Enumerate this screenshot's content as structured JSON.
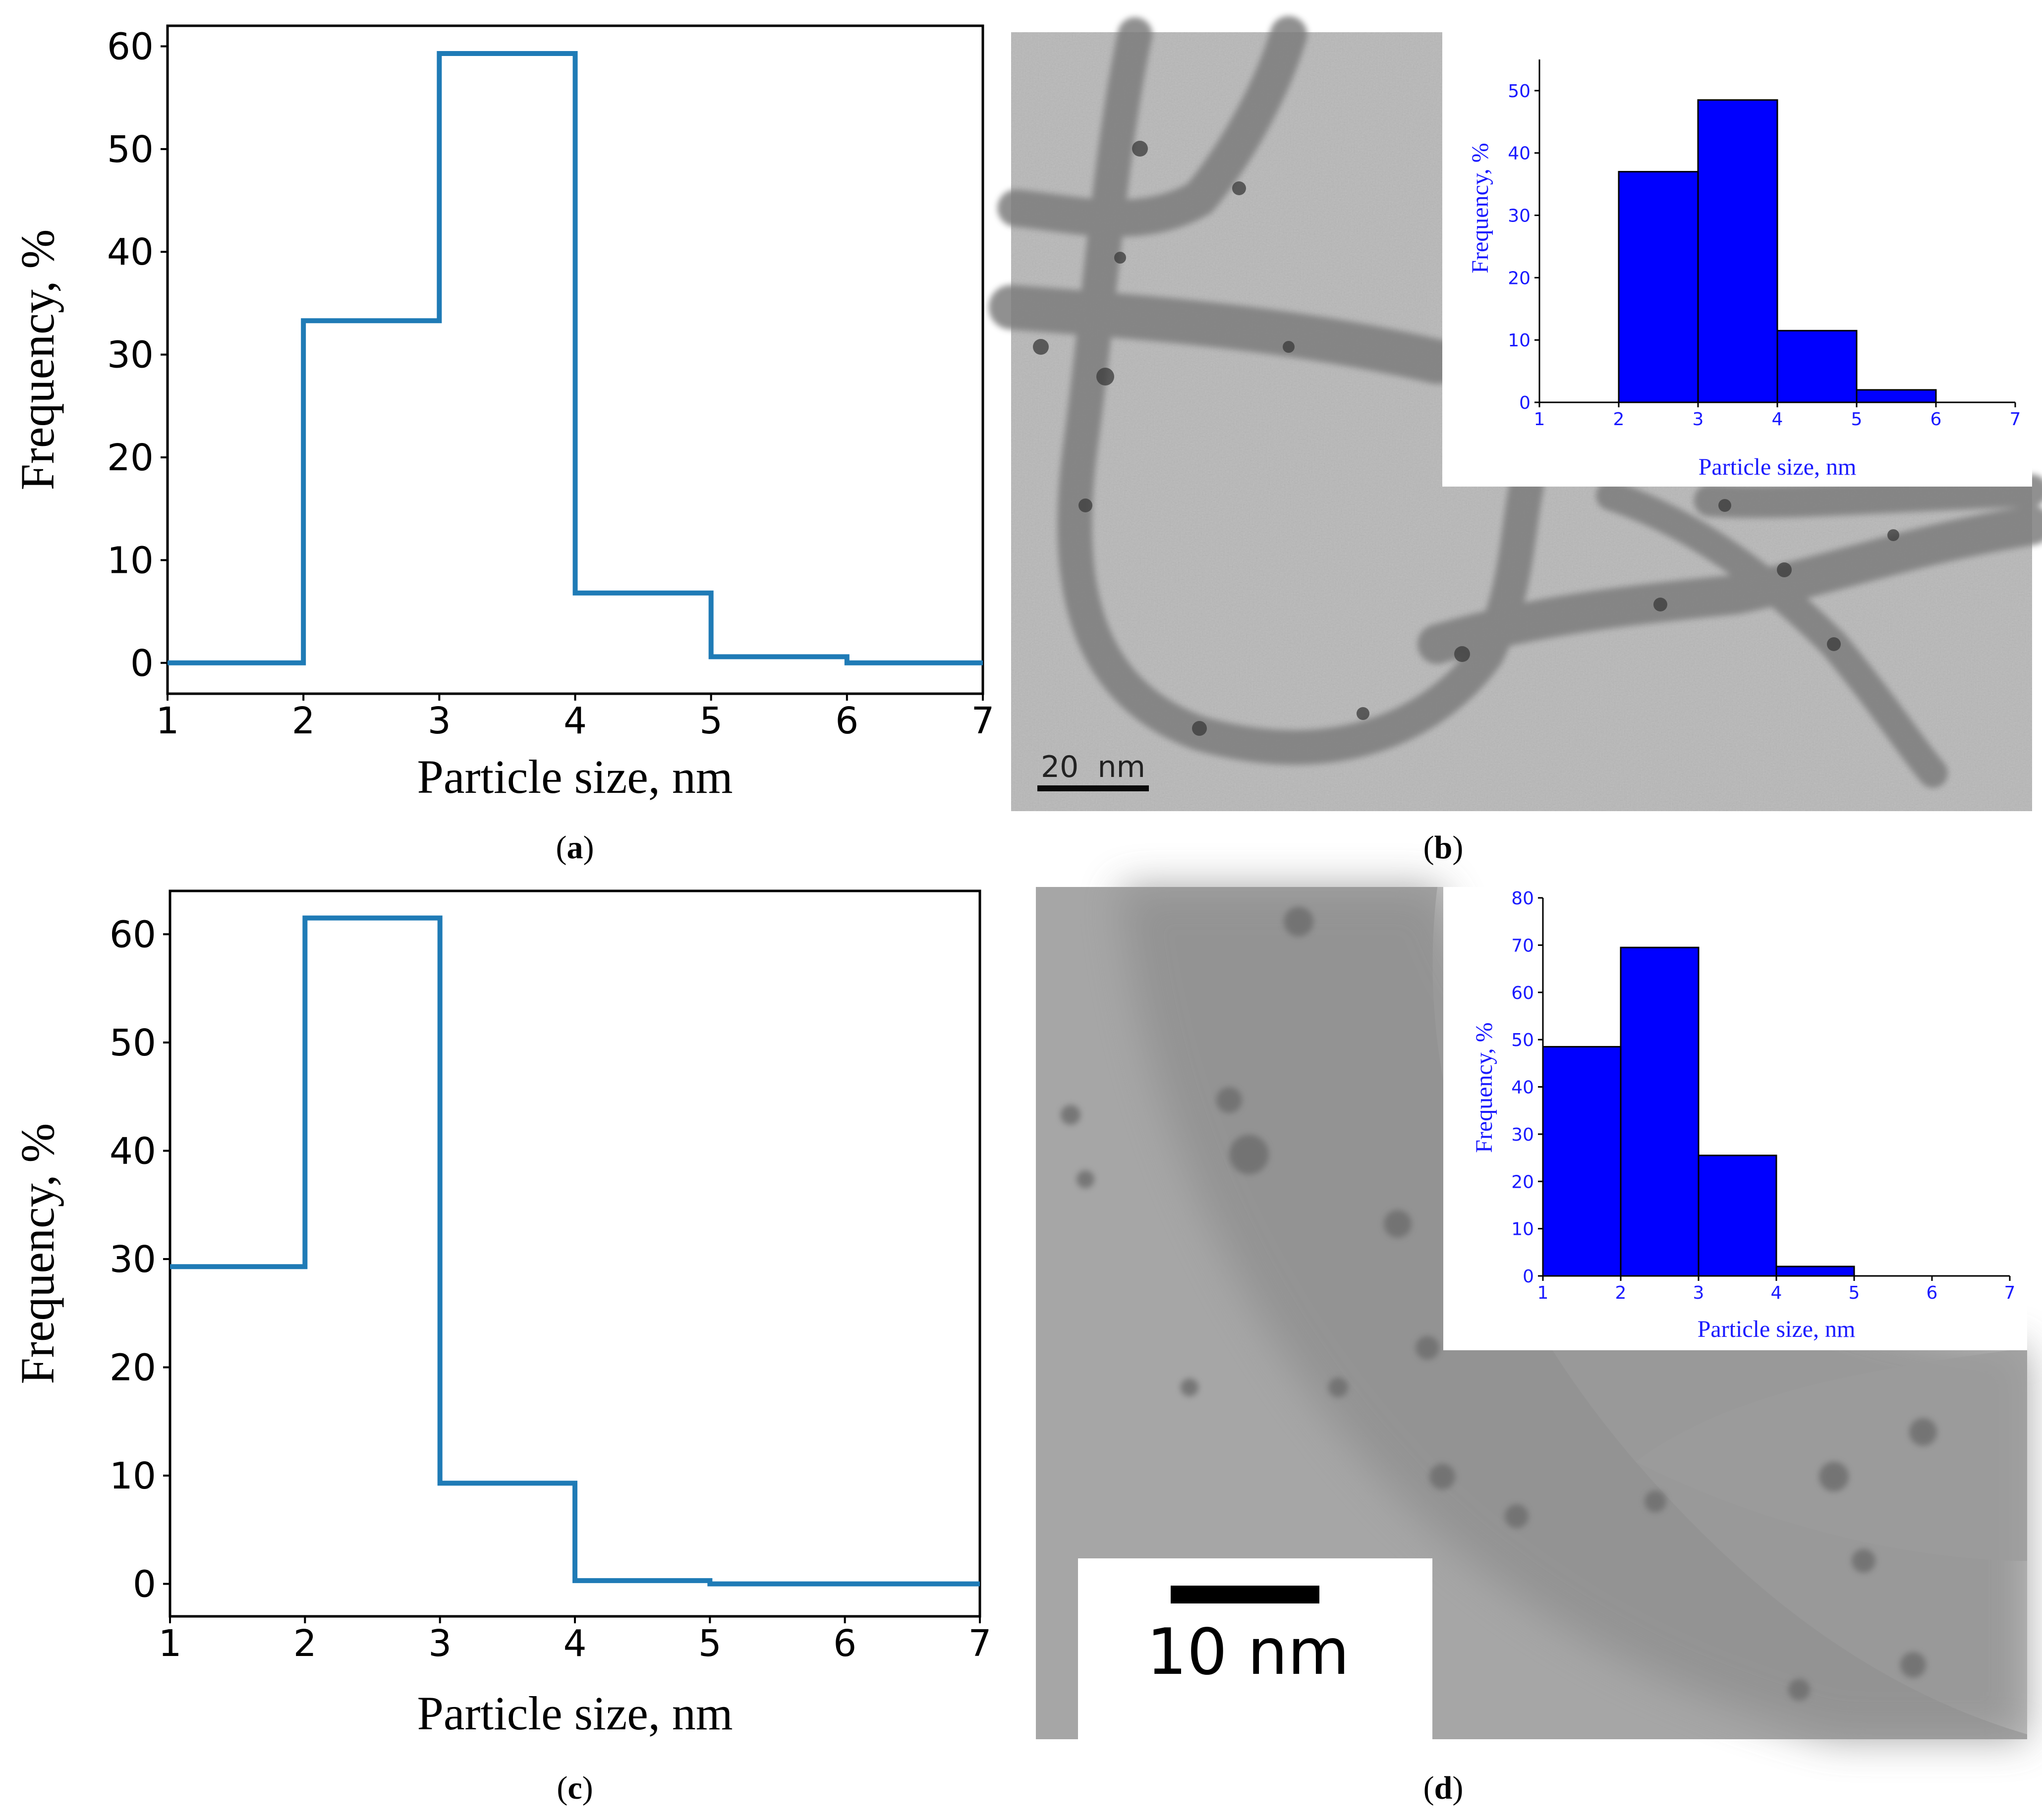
{
  "figure": {
    "panel_labels": [
      {
        "open": "(",
        "letter": "a",
        "close": ")"
      },
      {
        "open": "(",
        "letter": "b",
        "close": ")"
      },
      {
        "open": "(",
        "letter": "c",
        "close": ")"
      },
      {
        "open": "(",
        "letter": "d",
        "close": ")"
      }
    ],
    "micrograph_b": {
      "scale_bar": "20  nm"
    },
    "micrograph_d": {
      "scale_bar": "10 nm"
    }
  },
  "colors": {
    "step_line": "#1f7bb6",
    "inset_bar": "#0000ff",
    "inset_text": "#1a1aff",
    "tem_background": "#b9b9b9"
  },
  "chart_data": [
    {
      "id": "a",
      "type": "line",
      "style": "step",
      "title": "",
      "xlabel": "Particle size, nm",
      "ylabel": "Frequency, %",
      "xlim": [
        1,
        7
      ],
      "ylim": [
        -3,
        62
      ],
      "xticks": [
        "1",
        "2",
        "3",
        "4",
        "5",
        "6",
        "7"
      ],
      "yticks": [
        "0",
        "10",
        "20",
        "30",
        "40",
        "50",
        "60"
      ],
      "series": [
        {
          "name": "frequency",
          "bin_edges": [
            1,
            2,
            3,
            4,
            5,
            6,
            7
          ],
          "values": [
            0,
            33.3,
            59.3,
            6.8,
            0.6,
            0
          ]
        }
      ]
    },
    {
      "id": "b-inset",
      "type": "bar",
      "title": "",
      "xlabel": "Particle size, nm",
      "ylabel": "Frequency, %",
      "xlim": [
        1,
        7
      ],
      "ylim": [
        0,
        55
      ],
      "xticks": [
        "1",
        "2",
        "3",
        "4",
        "5",
        "6",
        "7"
      ],
      "yticks": [
        "0",
        "10",
        "20",
        "30",
        "40",
        "50"
      ],
      "bin_edges": [
        2,
        3,
        4,
        5,
        6
      ],
      "values": [
        37.0,
        48.5,
        11.5,
        2.0
      ]
    },
    {
      "id": "c",
      "type": "line",
      "style": "step",
      "title": "",
      "xlabel": "Particle size, nm",
      "ylabel": "Frequency, %",
      "xlim": [
        1,
        7
      ],
      "ylim": [
        -3,
        64
      ],
      "xticks": [
        "1",
        "2",
        "3",
        "4",
        "5",
        "6",
        "7"
      ],
      "yticks": [
        "0",
        "10",
        "20",
        "30",
        "40",
        "50",
        "60"
      ],
      "series": [
        {
          "name": "frequency",
          "bin_edges": [
            1,
            2,
            3,
            4,
            5,
            6,
            7
          ],
          "values": [
            29.3,
            61.5,
            9.3,
            0.3,
            0,
            0
          ]
        }
      ]
    },
    {
      "id": "d-inset",
      "type": "bar",
      "title": "",
      "xlabel": "Particle size, nm",
      "ylabel": "Frequency, %",
      "xlim": [
        1,
        7
      ],
      "ylim": [
        0,
        80
      ],
      "xticks": [
        "1",
        "2",
        "3",
        "4",
        "5",
        "6",
        "7"
      ],
      "yticks": [
        "0",
        "10",
        "20",
        "30",
        "40",
        "50",
        "60",
        "70",
        "80"
      ],
      "bin_edges": [
        1,
        2,
        3,
        4,
        5
      ],
      "values": [
        48.5,
        69.5,
        25.5,
        2.0
      ]
    }
  ]
}
